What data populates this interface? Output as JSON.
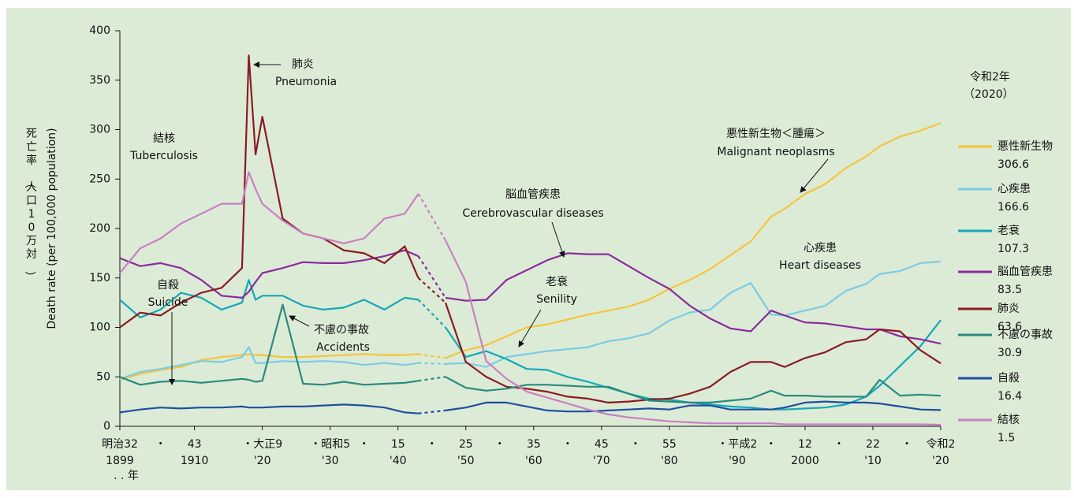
{
  "chart_data": {
    "type": "line",
    "y_label": "死亡率（人口10万対）",
    "y_label_en": "Death rate (per 100,000 population)",
    "legend_title": [
      "令和2年",
      "（2020）"
    ],
    "x_unit_label": ". . 年",
    "xlim": [
      1899,
      2020
    ],
    "ylim": [
      0,
      400
    ],
    "yticks": [
      0,
      50,
      100,
      150,
      200,
      250,
      300,
      350,
      400
    ],
    "xticks": [
      1899,
      1910,
      {
        "value": 1920,
        "label": "'20"
      },
      {
        "value": 1930,
        "label": "'30"
      },
      {
        "value": 1940,
        "label": "'40"
      },
      {
        "value": 1950,
        "label": "'50"
      },
      {
        "value": 1960,
        "label": "'60"
      },
      {
        "value": 1970,
        "label": "'70"
      },
      {
        "value": 1980,
        "label": "'80"
      },
      {
        "value": 1990,
        "label": "'90"
      },
      2000,
      {
        "value": 2010,
        "label": "'10"
      },
      {
        "value": 2020,
        "label": "'20"
      }
    ],
    "era_ticks": [
      {
        "value": 1899,
        "label": "明治32"
      },
      {
        "value": 1905,
        "label": "・"
      },
      {
        "value": 1910,
        "label": "43"
      },
      {
        "value": 1920,
        "label": "・大正9"
      },
      {
        "value": 1930,
        "label": "・昭和5"
      },
      {
        "value": 1935,
        "label": "・"
      },
      {
        "value": 1940,
        "label": "15"
      },
      {
        "value": 1945,
        "label": "・"
      },
      {
        "value": 1950,
        "label": "25"
      },
      {
        "value": 1955,
        "label": "・"
      },
      {
        "value": 1960,
        "label": "35"
      },
      {
        "value": 1965,
        "label": "・"
      },
      {
        "value": 1970,
        "label": "45"
      },
      {
        "value": 1975,
        "label": "・"
      },
      {
        "value": 1980,
        "label": "55"
      },
      {
        "value": 1990,
        "label": "・平成2"
      },
      {
        "value": 1995,
        "label": "・"
      },
      {
        "value": 2000,
        "label": "12"
      },
      {
        "value": 2005,
        "label": "・"
      },
      {
        "value": 2010,
        "label": "22"
      },
      {
        "value": 2015,
        "label": "・"
      },
      {
        "value": 2020,
        "label": "令和2"
      }
    ],
    "x": [
      1899,
      1902,
      1905,
      1908,
      1911,
      1914,
      1917,
      1918,
      1919,
      1920,
      1923,
      1926,
      1929,
      1932,
      1935,
      1938,
      1941,
      1943,
      1945,
      1947,
      1950,
      1953,
      1956,
      1959,
      1962,
      1965,
      1968,
      1971,
      1974,
      1977,
      1980,
      1983,
      1986,
      1989,
      1992,
      1995,
      1997,
      2000,
      2003,
      2006,
      2009,
      2011,
      2014,
      2017,
      2020
    ],
    "series": [
      {
        "name": "悪性新生物",
        "color": "#f5c53c",
        "values": [
          47,
          53,
          57,
          60,
          67,
          70,
          72,
          73,
          72,
          72,
          70,
          70,
          71,
          72,
          73,
          72,
          72,
          73,
          null,
          69,
          77,
          82,
          91,
          100,
          103,
          108,
          113,
          117,
          121,
          128,
          139,
          148,
          159,
          173,
          187,
          212,
          220,
          235,
          245,
          261,
          273,
          283,
          293,
          299,
          306.6
        ]
      },
      {
        "name": "心疾患",
        "color": "#7ccbe6",
        "values": [
          48,
          55,
          58,
          62,
          66,
          65,
          70,
          80,
          64,
          64,
          66,
          65,
          66,
          65,
          62,
          64,
          62,
          64,
          null,
          63,
          64,
          60,
          70,
          73,
          76,
          78,
          80,
          86,
          89,
          94,
          107,
          115,
          118,
          135,
          145,
          113,
          112,
          117,
          122,
          137,
          144,
          154,
          157,
          165,
          166.6
        ]
      },
      {
        "name": "老衰",
        "color": "#14a8b8",
        "values": [
          128,
          110,
          118,
          135,
          130,
          118,
          125,
          148,
          128,
          132,
          132,
          122,
          118,
          120,
          128,
          118,
          130,
          128,
          null,
          100,
          70,
          76,
          68,
          58,
          57,
          50,
          45,
          39,
          33,
          28,
          27,
          24,
          22,
          20,
          19,
          17,
          17,
          18,
          19,
          22,
          30,
          41,
          61,
          81,
          107.3
        ]
      },
      {
        "name": "脳血管疾患",
        "color": "#8a2c9c",
        "values": [
          170,
          162,
          165,
          160,
          148,
          132,
          130,
          136,
          146,
          155,
          160,
          166,
          165,
          165,
          168,
          172,
          178,
          172,
          null,
          130,
          127,
          128,
          148,
          158,
          168,
          175,
          174,
          174,
          162,
          150,
          139,
          122,
          109,
          99,
          96,
          117,
          112,
          105,
          104,
          101,
          98,
          98,
          91,
          88,
          83.5
        ]
      },
      {
        "name": "肺炎",
        "color": "#8a1c22",
        "values": [
          100,
          115,
          112,
          125,
          135,
          140,
          160,
          375,
          275,
          313,
          210,
          195,
          190,
          178,
          175,
          165,
          182,
          150,
          null,
          125,
          65,
          50,
          40,
          38,
          35,
          30,
          28,
          24,
          25,
          27,
          28,
          33,
          40,
          55,
          65,
          65,
          60,
          69,
          75,
          85,
          88,
          98,
          96,
          77,
          63.6
        ]
      },
      {
        "name": "不慮の事故",
        "color": "#2a8a80",
        "values": [
          50,
          42,
          45,
          46,
          44,
          46,
          48,
          47,
          45,
          46,
          123,
          43,
          42,
          45,
          42,
          43,
          44,
          46,
          null,
          50,
          39,
          36,
          38,
          42,
          42,
          41,
          40,
          40,
          33,
          26,
          25,
          24,
          24,
          26,
          28,
          36,
          31,
          31,
          30,
          30,
          30,
          47,
          31,
          32,
          30.9
        ]
      },
      {
        "name": "自殺",
        "color": "#1f4fa0",
        "values": [
          14,
          17,
          19,
          18,
          19,
          19,
          20,
          19,
          19,
          19,
          20,
          20,
          21,
          22,
          21,
          19,
          14,
          13,
          null,
          16,
          19,
          24,
          24,
          20,
          16,
          15,
          15,
          16,
          17,
          18,
          17,
          21,
          21,
          17,
          17,
          17,
          19,
          24,
          25,
          24,
          24,
          23,
          20,
          17,
          16.4
        ]
      },
      {
        "name": "結核",
        "color": "#c880c2",
        "values": [
          155,
          180,
          190,
          205,
          215,
          225,
          225,
          257,
          240,
          225,
          208,
          195,
          190,
          185,
          190,
          210,
          215,
          235,
          null,
          188,
          146,
          66,
          48,
          35,
          29,
          23,
          17,
          12,
          9,
          7,
          5,
          4,
          3,
          3,
          3,
          3,
          2,
          2,
          2,
          2,
          2,
          2,
          2,
          2,
          1.5
        ]
      }
    ],
    "annotations": [
      {
        "text": [
          "肺炎",
          "Pneumonia"
        ]
      },
      {
        "text": [
          "結核",
          "Tuberculosis"
        ]
      },
      {
        "text": [
          "自殺",
          "Suicide"
        ]
      },
      {
        "text": [
          "不慮の事故",
          "Accidents"
        ]
      },
      {
        "text": [
          "脳血管疾患",
          "Cerebrovascular diseases"
        ]
      },
      {
        "text": [
          "老衰",
          "Senility"
        ]
      },
      {
        "text": [
          "悪性新生物＜腫瘍＞",
          "Malignant neoplasms"
        ]
      },
      {
        "text": [
          "心疾患",
          "Heart diseases"
        ]
      }
    ]
  }
}
